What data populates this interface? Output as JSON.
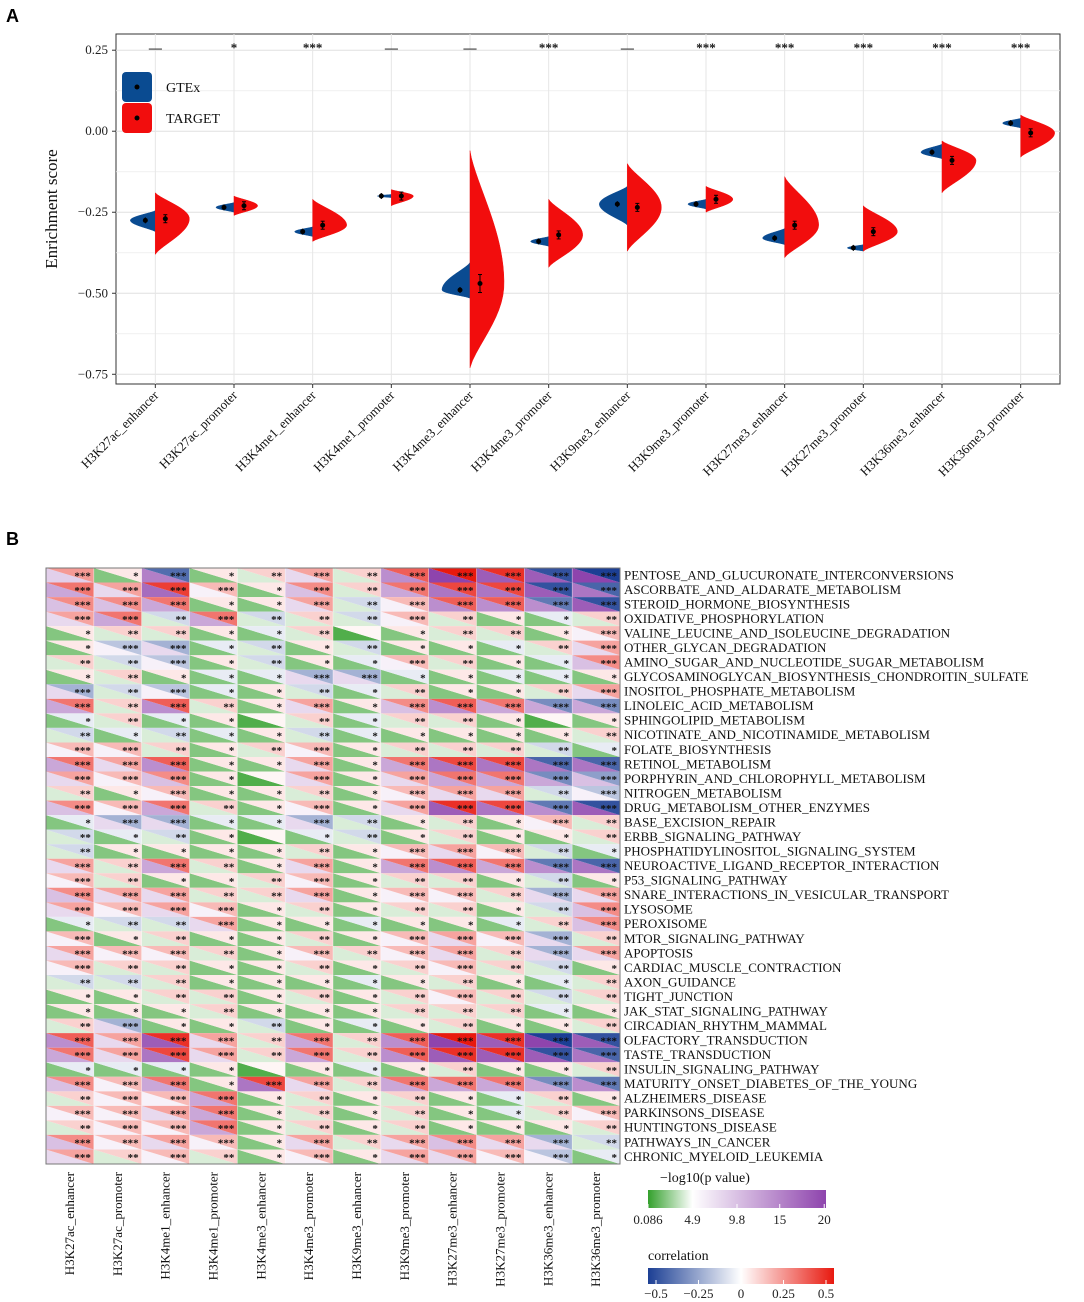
{
  "panel_a_letter": "A",
  "panel_b_letter": "B",
  "colors": {
    "gtex": "#0a4b91",
    "target": "#f20d0d",
    "sig_low": "#33a02c",
    "sig_high": "#8e44ad",
    "corr_neg": "#1c3f94",
    "corr_pos": "#e8190f"
  },
  "chart_data": [
    {
      "type": "violin",
      "title": "",
      "ylabel": "Enrichment score",
      "xlabel": "",
      "ylim": [
        -0.78,
        0.3
      ],
      "yticks": [
        0.25,
        0.0,
        -0.25,
        -0.5,
        -0.75
      ],
      "ytick_labels": [
        "0.25",
        "0.00",
        "−0.25",
        "−0.50",
        "−0.75"
      ],
      "legend": [
        "GTEx",
        "TARGET"
      ],
      "legend_position": "top-left",
      "categories": [
        "H3K27ac_enhancer",
        "H3K27ac_promoter",
        "H3K4me1_enhancer",
        "H3K4me1_promoter",
        "H3K4me3_enhancer",
        "H3K4me3_promoter",
        "H3K9me3_enhancer",
        "H3K9me3_promoter",
        "H3K27me3_enhancer",
        "H3K27me3_promoter",
        "H3K36me3_enhancer",
        "H3K36me3_promoter"
      ],
      "significance": [
        "—",
        "*",
        "***",
        "—",
        "—",
        "***",
        "—",
        "***",
        "***",
        "***",
        "***",
        "***"
      ],
      "series": [
        {
          "name": "GTEx",
          "medians": [
            -0.275,
            -0.235,
            -0.31,
            -0.2,
            -0.49,
            -0.34,
            -0.225,
            -0.225,
            -0.33,
            -0.36,
            -0.065,
            0.025
          ],
          "ranges": [
            [
              -0.31,
              -0.245
            ],
            [
              -0.25,
              -0.22
            ],
            [
              -0.325,
              -0.295
            ],
            [
              -0.205,
              -0.195
            ],
            [
              -0.515,
              -0.405
            ],
            [
              -0.355,
              -0.325
            ],
            [
              -0.29,
              -0.17
            ],
            [
              -0.24,
              -0.21
            ],
            [
              -0.35,
              -0.3
            ],
            [
              -0.37,
              -0.35
            ],
            [
              -0.085,
              -0.04
            ],
            [
              0.01,
              0.04
            ]
          ]
        },
        {
          "name": "TARGET",
          "medians": [
            -0.27,
            -0.23,
            -0.29,
            -0.2,
            -0.47,
            -0.32,
            -0.235,
            -0.21,
            -0.29,
            -0.31,
            -0.09,
            -0.005
          ],
          "ranges": [
            [
              -0.38,
              -0.19
            ],
            [
              -0.26,
              -0.2
            ],
            [
              -0.34,
              -0.21
            ],
            [
              -0.23,
              -0.18
            ],
            [
              -0.73,
              -0.06
            ],
            [
              -0.42,
              -0.21
            ],
            [
              -0.37,
              -0.1
            ],
            [
              -0.25,
              -0.17
            ],
            [
              -0.39,
              -0.14
            ],
            [
              -0.37,
              -0.23
            ],
            [
              -0.19,
              -0.03
            ],
            [
              -0.08,
              0.05
            ]
          ]
        }
      ]
    },
    {
      "type": "heatmap",
      "columns": [
        "H3K27ac_enhancer",
        "H3K27ac_promoter",
        "H3K4me1_enhancer",
        "H3K4me1_promoter",
        "H3K4me3_enhancer",
        "H3K4me3_promoter",
        "H3K9me3_enhancer",
        "H3K9me3_promoter",
        "H3K27me3_enhancer",
        "H3K27me3_promoter",
        "H3K36me3_enhancer",
        "H3K36me3_promoter"
      ],
      "rows": [
        "PENTOSE_AND_GLUCURONATE_INTERCONVERSIONS",
        "ASCORBATE_AND_ALDARATE_METABOLISM",
        "STEROID_HORMONE_BIOSYNTHESIS",
        "OXIDATIVE_PHOSPHORYLATION",
        "VALINE_LEUCINE_AND_ISOLEUCINE_DEGRADATION",
        "OTHER_GLYCAN_DEGRADATION",
        "AMINO_SUGAR_AND_NUCLEOTIDE_SUGAR_METABOLISM",
        "GLYCOSAMINOGLYCAN_BIOSYNTHESIS_CHONDROITIN_SULFATE",
        "INOSITOL_PHOSPHATE_METABOLISM",
        "LINOLEIC_ACID_METABOLISM",
        "SPHINGOLIPID_METABOLISM",
        "NICOTINATE_AND_NICOTINAMIDE_METABOLISM",
        "FOLATE_BIOSYNTHESIS",
        "RETINOL_METABOLISM",
        "PORPHYRIN_AND_CHLOROPHYLL_METABOLISM",
        "NITROGEN_METABOLISM",
        "DRUG_METABOLISM_OTHER_ENZYMES",
        "BASE_EXCISION_REPAIR",
        "ERBB_SIGNALING_PATHWAY",
        "PHOSPHATIDYLINOSITOL_SIGNALING_SYSTEM",
        "NEUROACTIVE_LIGAND_RECEPTOR_INTERACTION",
        "P53_SIGNALING_PATHWAY",
        "SNARE_INTERACTIONS_IN_VESICULAR_TRANSPORT",
        "LYSOSOME",
        "PEROXISOME",
        "MTOR_SIGNALING_PATHWAY",
        "APOPTOSIS",
        "CARDIAC_MUSCLE_CONTRACTION",
        "AXON_GUIDANCE",
        "TIGHT_JUNCTION",
        "JAK_STAT_SIGNALING_PATHWAY",
        "CIRCADIAN_RHYTHM_MAMMAL",
        "OLFACTORY_TRANSDUCTION",
        "TASTE_TRANSDUCTION",
        "INSULIN_SIGNALING_PATHWAY",
        "MATURITY_ONSET_DIABETES_OF_THE_YOUNG",
        "ALZHEIMERS_DISEASE",
        "PARKINSONS_DISEASE",
        "HUNTINGTONS_DISEASE",
        "PATHWAYS_IN_CANCER",
        "CHRONIC_MYELOID_LEUKEMIA"
      ],
      "corr": [
        [
          0.22,
          0.05,
          -0.38,
          0.05,
          0.1,
          0.2,
          0.1,
          0.35,
          0.5,
          0.45,
          -0.45,
          -0.5
        ],
        [
          0.3,
          0.2,
          0.42,
          0.15,
          0.05,
          0.25,
          0.1,
          0.3,
          0.4,
          0.4,
          -0.45,
          -0.4
        ],
        [
          0.25,
          0.25,
          0.3,
          0.05,
          0.05,
          0.2,
          -0.1,
          0.15,
          0.35,
          0.35,
          -0.35,
          -0.45
        ],
        [
          0.2,
          0.3,
          -0.1,
          0.3,
          -0.1,
          0.1,
          -0.1,
          0.15,
          0.1,
          0.05,
          -0.05,
          0.1
        ],
        [
          0.05,
          0.1,
          0.1,
          0.05,
          -0.05,
          0.1,
          0.02,
          0.05,
          0.1,
          0.1,
          0.05,
          0.15
        ],
        [
          0.05,
          -0.15,
          -0.2,
          -0.05,
          -0.1,
          0.05,
          -0.1,
          0.05,
          0.05,
          -0.05,
          0.1,
          0.2
        ],
        [
          0.1,
          -0.1,
          -0.15,
          0.05,
          -0.1,
          0.05,
          -0.05,
          0.15,
          0.1,
          0.05,
          -0.05,
          0.25
        ],
        [
          0.05,
          0.1,
          0.05,
          -0.05,
          -0.05,
          -0.2,
          -0.2,
          -0.05,
          0.05,
          -0.05,
          -0.05,
          0.05
        ],
        [
          -0.2,
          -0.1,
          -0.15,
          -0.05,
          0.05,
          -0.1,
          -0.05,
          0.1,
          0.05,
          0.05,
          0.1,
          0.2
        ],
        [
          0.3,
          0.1,
          0.35,
          0.1,
          0.05,
          0.2,
          0.05,
          0.25,
          0.35,
          0.3,
          -0.3,
          -0.3
        ],
        [
          -0.05,
          0.1,
          -0.05,
          0.05,
          0.02,
          0.1,
          -0.05,
          0.1,
          0.1,
          0.05,
          0.02,
          0.05
        ],
        [
          -0.1,
          -0.05,
          -0.1,
          -0.05,
          0.05,
          -0.1,
          -0.05,
          0.05,
          0.05,
          0.05,
          0.05,
          0.1
        ],
        [
          0.15,
          0.15,
          0.1,
          0.05,
          0.1,
          0.15,
          0.05,
          0.1,
          0.1,
          0.1,
          -0.1,
          -0.05
        ],
        [
          0.3,
          0.2,
          0.35,
          0.05,
          0.05,
          0.2,
          0.05,
          0.3,
          0.4,
          0.4,
          -0.4,
          -0.4
        ],
        [
          0.2,
          0.15,
          0.25,
          0.05,
          0.02,
          0.2,
          0.05,
          0.2,
          0.3,
          0.3,
          -0.3,
          -0.25
        ],
        [
          0.1,
          0.05,
          0.15,
          0.05,
          0.05,
          0.1,
          0.05,
          0.15,
          0.2,
          0.2,
          -0.1,
          -0.15
        ],
        [
          0.25,
          0.15,
          0.3,
          0.1,
          0.05,
          0.15,
          0.05,
          0.2,
          0.45,
          0.4,
          -0.35,
          -0.45
        ],
        [
          -0.05,
          -0.2,
          -0.2,
          -0.05,
          -0.05,
          -0.2,
          -0.1,
          0.05,
          0.1,
          0.05,
          0.15,
          0.1
        ],
        [
          -0.1,
          -0.05,
          -0.1,
          0.05,
          0.02,
          -0.05,
          -0.1,
          0.05,
          0.1,
          0.05,
          0.05,
          0.1
        ],
        [
          -0.1,
          0.05,
          0.05,
          0.05,
          0.05,
          0.1,
          0.05,
          0.15,
          0.2,
          0.15,
          -0.1,
          -0.05
        ],
        [
          0.2,
          0.1,
          0.3,
          0.1,
          0.05,
          0.2,
          0.05,
          0.3,
          0.35,
          0.3,
          -0.35,
          -0.4
        ],
        [
          0.15,
          0.1,
          0.05,
          0.05,
          0.1,
          0.15,
          0.05,
          0.1,
          0.1,
          0.05,
          -0.1,
          0.05
        ],
        [
          0.25,
          0.2,
          0.2,
          0.1,
          0.1,
          0.2,
          0.05,
          0.15,
          0.15,
          0.1,
          -0.2,
          0.2
        ],
        [
          0.2,
          0.15,
          0.2,
          0.15,
          0.05,
          0.1,
          0.05,
          0.1,
          0.1,
          0.05,
          -0.1,
          0.25
        ],
        [
          -0.05,
          -0.1,
          -0.1,
          0.2,
          0.05,
          0.05,
          -0.05,
          0.05,
          0.05,
          -0.05,
          0.1,
          0.25
        ],
        [
          0.15,
          0.05,
          0.1,
          0.05,
          0.05,
          0.1,
          0.05,
          0.15,
          0.2,
          0.15,
          -0.2,
          0.1
        ],
        [
          0.2,
          0.15,
          0.15,
          0.1,
          0.05,
          0.15,
          0.1,
          0.15,
          0.2,
          0.1,
          -0.2,
          0.2
        ],
        [
          0.15,
          0.1,
          0.1,
          0.05,
          0.05,
          0.1,
          0.05,
          0.1,
          0.15,
          0.1,
          -0.1,
          0.05
        ],
        [
          -0.1,
          -0.1,
          0.1,
          0.05,
          0.05,
          0.05,
          -0.05,
          0.05,
          0.1,
          0.05,
          -0.05,
          0.1
        ],
        [
          0.05,
          0.05,
          0.1,
          0.1,
          0.05,
          0.1,
          0.05,
          0.1,
          0.15,
          0.1,
          -0.1,
          0.1
        ],
        [
          0.05,
          0.05,
          0.05,
          0.1,
          0.05,
          0.05,
          0.05,
          0.1,
          0.1,
          0.1,
          -0.05,
          0.05
        ],
        [
          0.1,
          -0.2,
          0.05,
          0.05,
          -0.1,
          0.05,
          -0.05,
          0.05,
          0.1,
          0.05,
          0.05,
          0.1
        ],
        [
          0.35,
          0.2,
          0.45,
          0.2,
          0.1,
          0.3,
          0.1,
          0.35,
          0.5,
          0.45,
          -0.5,
          -0.45
        ],
        [
          0.3,
          0.2,
          0.4,
          0.2,
          0.1,
          0.3,
          0.1,
          0.35,
          0.45,
          0.45,
          -0.45,
          -0.4
        ],
        [
          -0.05,
          -0.05,
          -0.05,
          0.05,
          0.02,
          0.05,
          -0.05,
          0.05,
          0.1,
          0.05,
          0.05,
          0.1
        ],
        [
          0.25,
          0.15,
          0.3,
          0.05,
          0.4,
          0.2,
          0.1,
          0.3,
          0.3,
          0.3,
          -0.3,
          -0.35
        ],
        [
          0.1,
          0.15,
          0.15,
          0.3,
          0.05,
          0.1,
          0.05,
          0.1,
          0.05,
          -0.05,
          0.1,
          0.05
        ],
        [
          0.15,
          0.15,
          0.2,
          0.3,
          0.05,
          0.1,
          0.05,
          0.1,
          0.05,
          -0.05,
          0.1,
          0.15
        ],
        [
          0.1,
          0.15,
          0.15,
          0.3,
          0.05,
          0.1,
          0.05,
          0.1,
          0.05,
          0.05,
          0.05,
          0.1
        ],
        [
          0.25,
          0.15,
          0.2,
          0.15,
          0.05,
          0.2,
          0.1,
          0.2,
          0.25,
          0.2,
          -0.2,
          -0.1
        ],
        [
          0.2,
          0.1,
          0.15,
          0.1,
          0.05,
          0.15,
          0.05,
          0.2,
          0.2,
          0.15,
          -0.15,
          -0.05
        ]
      ],
      "legend_sig": {
        "title": "−log10(p value)",
        "ticks": [
          "0.086",
          "4.9",
          "9.8",
          "15",
          "20"
        ],
        "range": [
          0.086,
          20
        ]
      },
      "legend_corr": {
        "title": "correlation",
        "ticks": [
          "−0.5",
          "−0.25",
          "0",
          "0.25",
          "0.5"
        ],
        "range": [
          -0.5,
          0.5
        ]
      }
    }
  ]
}
